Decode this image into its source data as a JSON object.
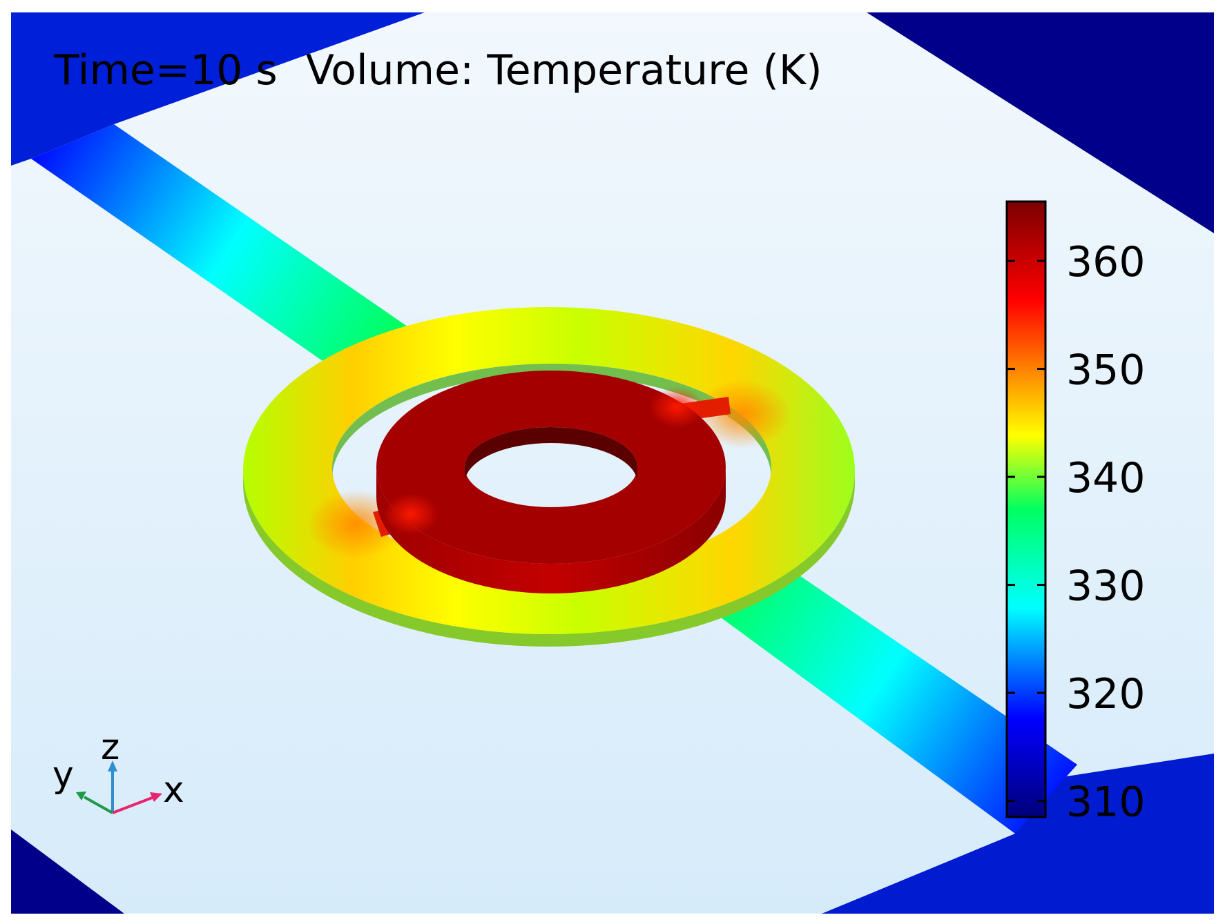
{
  "title": {
    "time_label": "Time=10 s",
    "plot_label": "Volume: Temperature (K)"
  },
  "colorbar": {
    "quantity": "Temperature",
    "unit": "K",
    "range": [
      308.5,
      365.5
    ],
    "ticks": [
      "360",
      "350",
      "340",
      "330",
      "320",
      "310"
    ],
    "tick_values": [
      360,
      350,
      340,
      330,
      320,
      310
    ],
    "colormap": "Rainbow",
    "colors": [
      "#00007a",
      "#0000ff",
      "#00ffff",
      "#00ff60",
      "#ffff00",
      "#ff0000",
      "#7a0000"
    ]
  },
  "field_values": {
    "inner_ring_K": 363,
    "outer_ring_top_K": 343,
    "outer_ring_left_K": 341,
    "outer_ring_right_K": 345,
    "outer_ring_bottom_K": 342,
    "outer_ring_near_leads_K": 349,
    "lead_mid_K": 330,
    "lead_end_K": 312,
    "pad_K": 309
  },
  "axis_triad": {
    "x_label": "x",
    "y_label": "y",
    "z_label": "z",
    "x_color": "#e8246e",
    "y_color": "#1e9a4a",
    "z_color": "#2f8fce"
  },
  "colors": {
    "background": "#ffffff",
    "substrate_top": "#f2f8fd",
    "substrate_bottom": "#d6ebfa"
  }
}
